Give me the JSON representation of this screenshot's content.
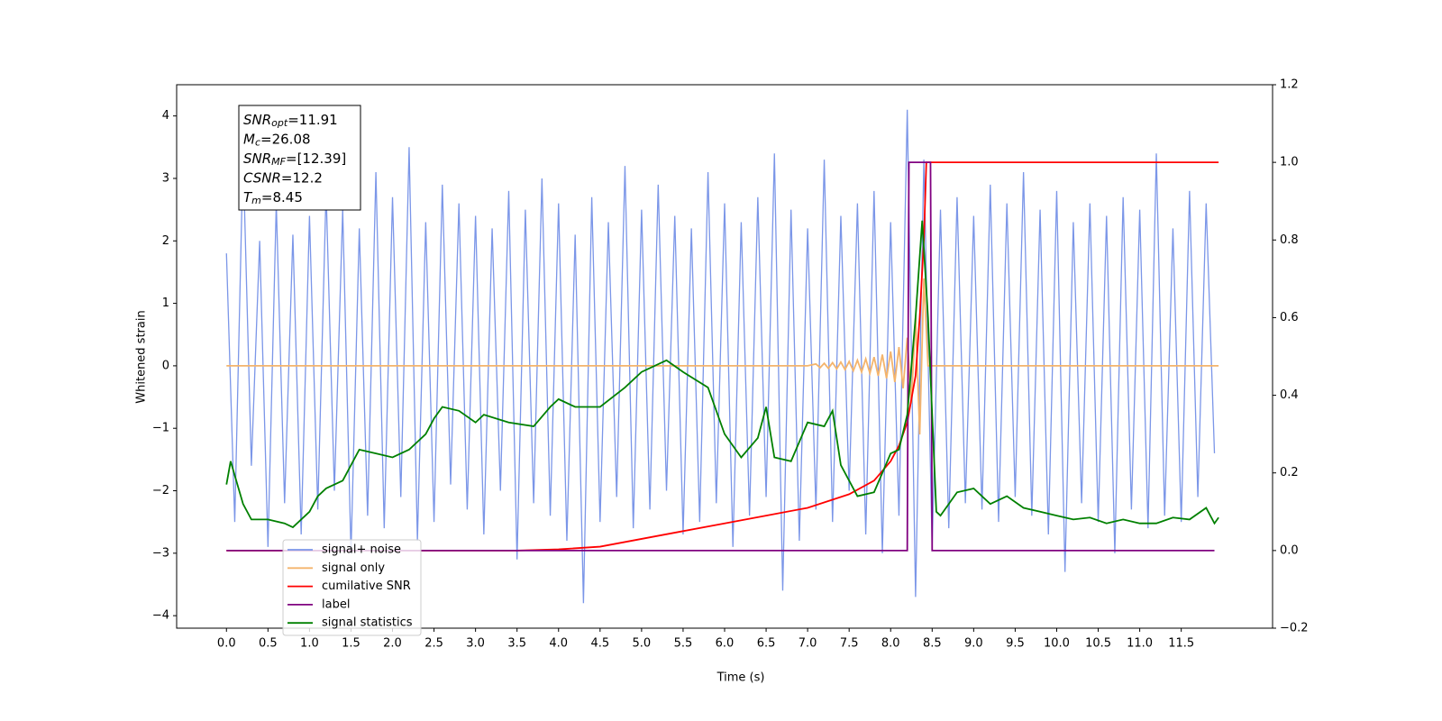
{
  "chart_data": {
    "type": "line",
    "xlabel": "Time (s)",
    "ylabel": "Whitened strain",
    "xlim": [
      -0.6,
      12.6
    ],
    "xticks": [
      {
        "value": 0,
        "label": "0.0"
      },
      0.5,
      {
        "value": 1,
        "label": "1.0"
      },
      1.5,
      {
        "value": 2,
        "label": "2.0"
      },
      2.5,
      {
        "value": 3,
        "label": "3.0"
      },
      3.5,
      {
        "value": 4,
        "label": "4.0"
      },
      4.5,
      {
        "value": 5,
        "label": "5.0"
      },
      5.5,
      {
        "value": 6,
        "label": "6.0"
      },
      6.5,
      {
        "value": 7,
        "label": "7.0"
      },
      7.5,
      {
        "value": 8,
        "label": "8.0"
      },
      8.5,
      {
        "value": 9,
        "label": "9.0"
      },
      9.5,
      {
        "value": 10,
        "label": "10.0"
      },
      10.5,
      {
        "value": 11,
        "label": "11.0"
      },
      11.5
    ],
    "ylim": [
      -4.2,
      4.5
    ],
    "yticks": [
      {
        "value": -4,
        "label": "−4"
      },
      {
        "value": -3,
        "label": "−3"
      },
      {
        "value": -2,
        "label": "−2"
      },
      {
        "value": -1,
        "label": "−1"
      },
      0,
      1,
      2,
      3,
      4
    ],
    "y2lim": [
      -0.2,
      1.2
    ],
    "y2ticks": [
      {
        "value": -0.2,
        "label": "−0.2"
      },
      {
        "value": 0,
        "label": "0.0"
      },
      0.2,
      0.4,
      0.6,
      0.8,
      {
        "value": 1,
        "label": "1.0"
      },
      1.2
    ],
    "grid": false,
    "legend": "lower left",
    "annotations": [
      {
        "main": "SNR",
        "sub": "opt",
        "rest": "=11.91"
      },
      {
        "main": "M",
        "sub": "c",
        "rest": "=26.08"
      },
      {
        "main": "SNR",
        "sub": "MF",
        "rest": "=[12.39]"
      },
      {
        "main": "CSNR",
        "rest": "=12.2"
      },
      {
        "main": "T",
        "sub": "m",
        "rest": "=8.45"
      }
    ],
    "series": [
      {
        "name": "signal+ noise",
        "color": "#7b96e8",
        "x": [
          0,
          0.1,
          0.2,
          0.3,
          0.4,
          0.5,
          0.6,
          0.7,
          0.8,
          0.9,
          1,
          1.1,
          1.2,
          1.3,
          1.4,
          1.5,
          1.6,
          1.7,
          1.8,
          1.9,
          2,
          2.1,
          2.2,
          2.3,
          2.4,
          2.5,
          2.6,
          2.7,
          2.8,
          2.9,
          3,
          3.1,
          3.2,
          3.3,
          3.4,
          3.5,
          3.6,
          3.7,
          3.8,
          3.9,
          4,
          4.1,
          4.2,
          4.3,
          4.4,
          4.5,
          4.6,
          4.7,
          4.8,
          4.9,
          5,
          5.1,
          5.2,
          5.3,
          5.4,
          5.5,
          5.6,
          5.7,
          5.8,
          5.9,
          6,
          6.1,
          6.2,
          6.3,
          6.4,
          6.5,
          6.6,
          6.7,
          6.8,
          6.9,
          7,
          7.1,
          7.2,
          7.3,
          7.4,
          7.5,
          7.6,
          7.7,
          7.8,
          7.9,
          8,
          8.1,
          8.2,
          8.3,
          8.4,
          8.5,
          8.6,
          8.7,
          8.8,
          8.9,
          9,
          9.1,
          9.2,
          9.3,
          9.4,
          9.5,
          9.6,
          9.7,
          9.8,
          9.9,
          10,
          10.1,
          10.2,
          10.3,
          10.4,
          10.5,
          10.6,
          10.7,
          10.8,
          10.9,
          11,
          11.1,
          11.2,
          11.3,
          11.4,
          11.5,
          11.6,
          11.7,
          11.8,
          11.9
        ],
        "values": [
          1.8,
          -2.5,
          3.4,
          -1.6,
          2.0,
          -2.9,
          2.6,
          -2.2,
          2.1,
          -2.7,
          2.4,
          -2.3,
          2.8,
          -2.0,
          2.5,
          -3.0,
          2.2,
          -2.4,
          3.1,
          -2.6,
          2.7,
          -2.1,
          3.5,
          -2.8,
          2.3,
          -2.5,
          2.9,
          -1.9,
          2.6,
          -2.3,
          2.4,
          -2.7,
          2.2,
          -2.0,
          2.8,
          -3.1,
          2.5,
          -2.2,
          3.0,
          -2.4,
          2.6,
          -2.8,
          2.1,
          -3.8,
          2.7,
          -2.5,
          2.3,
          -2.1,
          3.2,
          -2.6,
          2.5,
          -2.3,
          2.9,
          -2.0,
          2.4,
          -2.7,
          2.2,
          -2.5,
          3.1,
          -2.2,
          2.6,
          -2.9,
          2.3,
          -2.4,
          2.7,
          -2.1,
          3.4,
          -3.6,
          2.5,
          -2.8,
          2.2,
          -2.3,
          3.3,
          -2.5,
          2.4,
          -2.0,
          2.6,
          -2.7,
          2.8,
          -3.0,
          2.3,
          -2.4,
          4.1,
          -3.7,
          3.3,
          -2.9,
          2.5,
          -2.6,
          2.7,
          -2.2,
          2.4,
          -2.3,
          2.9,
          -2.5,
          2.6,
          -2.1,
          3.1,
          -2.4,
          2.5,
          -2.7,
          2.8,
          -3.3,
          2.3,
          -2.2,
          2.6,
          -2.5,
          2.4,
          -3.0,
          2.7,
          -2.3,
          2.5,
          -2.6,
          3.4,
          -2.4,
          2.2,
          -2.5,
          2.8,
          -2.1,
          2.6,
          -1.4
        ]
      },
      {
        "name": "signal only",
        "color": "#f4b46c",
        "x": [
          0,
          7.0,
          7.1,
          7.15,
          7.2,
          7.25,
          7.3,
          7.35,
          7.4,
          7.45,
          7.5,
          7.55,
          7.6,
          7.65,
          7.7,
          7.75,
          7.8,
          7.85,
          7.9,
          7.95,
          8.0,
          8.05,
          8.1,
          8.15,
          8.2,
          8.25,
          8.3,
          8.35,
          8.4,
          8.45,
          11.95
        ],
        "values": [
          0,
          0,
          0.03,
          -0.03,
          0.04,
          -0.04,
          0.05,
          -0.05,
          0.06,
          -0.06,
          0.07,
          -0.08,
          0.09,
          -0.1,
          0.11,
          -0.12,
          0.14,
          -0.16,
          0.18,
          -0.2,
          0.23,
          -0.26,
          0.3,
          -0.36,
          0.45,
          -0.6,
          0.8,
          -1.1,
          1.4,
          0,
          0
        ]
      },
      {
        "name": "cumilative SNR",
        "color": "#ff0000",
        "axis": "y2",
        "x": [
          0,
          3.5,
          4.0,
          4.5,
          5.0,
          5.5,
          6.0,
          6.5,
          7.0,
          7.5,
          7.8,
          8.0,
          8.1,
          8.2,
          8.3,
          8.35,
          8.4,
          8.43,
          11.95
        ],
        "values": [
          0,
          0,
          0.003,
          0.01,
          0.03,
          0.05,
          0.07,
          0.09,
          0.11,
          0.145,
          0.18,
          0.23,
          0.27,
          0.33,
          0.45,
          0.6,
          0.8,
          1.0,
          1.0
        ]
      },
      {
        "name": "label",
        "color": "#800080",
        "axis": "y2",
        "x": [
          0,
          8.2,
          8.22,
          8.48,
          8.5,
          11.9
        ],
        "values": [
          0,
          0,
          1,
          1,
          0,
          0
        ]
      },
      {
        "name": "signal statistics",
        "color": "#008000",
        "axis": "y2",
        "x": [
          0,
          0.05,
          0.2,
          0.3,
          0.5,
          0.7,
          0.8,
          1.0,
          1.1,
          1.2,
          1.4,
          1.6,
          1.8,
          2.0,
          2.2,
          2.4,
          2.5,
          2.6,
          2.8,
          3.0,
          3.1,
          3.4,
          3.7,
          3.9,
          4.0,
          4.2,
          4.5,
          4.8,
          5.0,
          5.3,
          5.5,
          5.8,
          6.0,
          6.2,
          6.4,
          6.5,
          6.6,
          6.8,
          7.0,
          7.2,
          7.3,
          7.4,
          7.6,
          7.8,
          7.9,
          8.0,
          8.1,
          8.2,
          8.3,
          8.38,
          8.45,
          8.55,
          8.6,
          8.8,
          9.0,
          9.2,
          9.4,
          9.6,
          9.8,
          10.0,
          10.2,
          10.4,
          10.6,
          10.8,
          11.0,
          11.2,
          11.4,
          11.6,
          11.8,
          11.9,
          11.95
        ],
        "values": [
          0.17,
          0.23,
          0.12,
          0.08,
          0.08,
          0.07,
          0.06,
          0.1,
          0.14,
          0.16,
          0.18,
          0.26,
          0.25,
          0.24,
          0.26,
          0.3,
          0.34,
          0.37,
          0.36,
          0.33,
          0.35,
          0.33,
          0.32,
          0.37,
          0.39,
          0.37,
          0.37,
          0.42,
          0.46,
          0.49,
          0.46,
          0.42,
          0.3,
          0.24,
          0.29,
          0.37,
          0.24,
          0.23,
          0.33,
          0.32,
          0.36,
          0.22,
          0.14,
          0.15,
          0.2,
          0.25,
          0.26,
          0.35,
          0.6,
          0.85,
          0.6,
          0.1,
          0.09,
          0.15,
          0.16,
          0.12,
          0.14,
          0.11,
          0.1,
          0.09,
          0.08,
          0.085,
          0.07,
          0.08,
          0.07,
          0.07,
          0.085,
          0.08,
          0.11,
          0.07,
          0.085
        ]
      }
    ]
  }
}
